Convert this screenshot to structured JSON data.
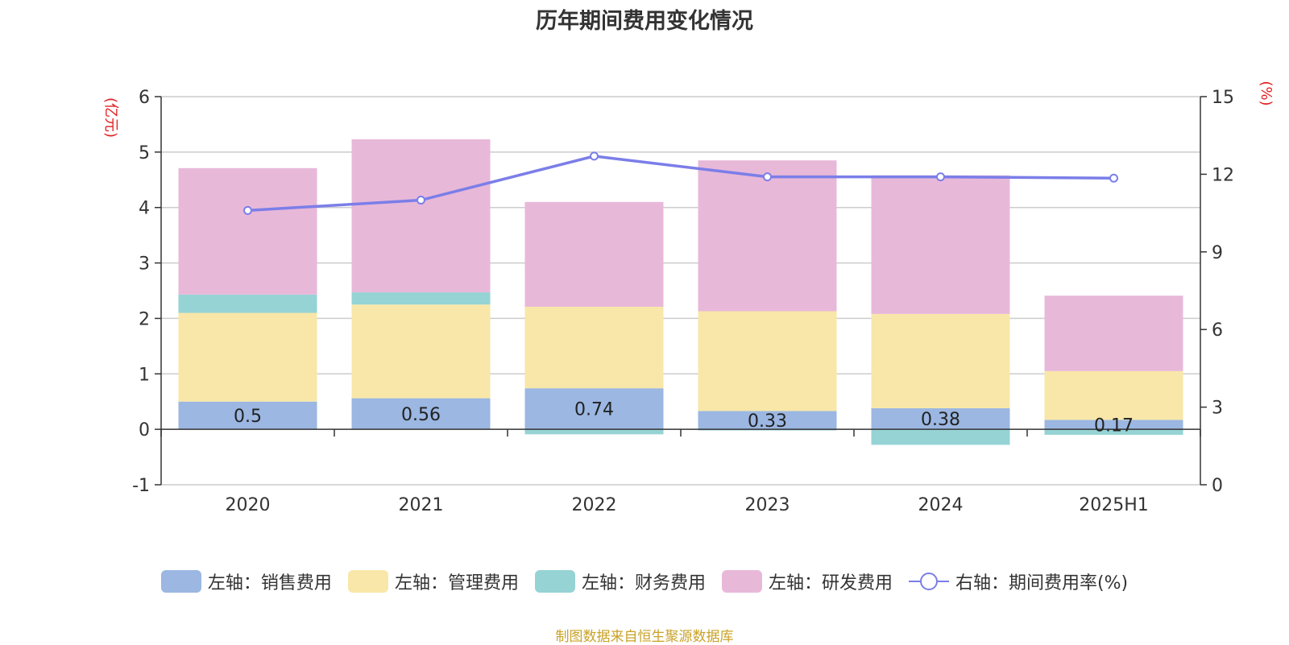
{
  "chart_data": {
    "type": "bar",
    "stacked": true,
    "title": "历年期间费用变化情况",
    "categories": [
      "2020",
      "2021",
      "2022",
      "2023",
      "2024",
      "2025H1"
    ],
    "left_axis": {
      "unit": "(亿元)",
      "ylim": [
        -1,
        6
      ],
      "ticks": [
        "-1",
        "0",
        "1",
        "2",
        "3",
        "4",
        "5",
        "6"
      ]
    },
    "right_axis": {
      "unit": "(%)",
      "ylim": [
        0,
        15
      ],
      "ticks": [
        "0",
        "3",
        "6",
        "9",
        "12",
        "15"
      ]
    },
    "grid": true,
    "legend_position": "bottom",
    "series": [
      {
        "name": "左轴：销售费用",
        "axis": "left",
        "color": "#9bb7e2",
        "values": [
          0.5,
          0.56,
          0.74,
          0.33,
          0.38,
          0.17
        ],
        "labels": [
          "0.5",
          "0.56",
          "0.74",
          "0.33",
          "0.38",
          "0.17"
        ]
      },
      {
        "name": "左轴：管理费用",
        "axis": "left",
        "color": "#f8e7a8",
        "values": [
          1.6,
          1.69,
          1.47,
          1.8,
          1.7,
          0.88
        ]
      },
      {
        "name": "左轴：财务费用",
        "axis": "left",
        "color": "#96d3d5",
        "values": [
          0.33,
          0.22,
          -0.09,
          -0.02,
          -0.28,
          -0.1
        ]
      },
      {
        "name": "左轴：研发费用",
        "axis": "left",
        "color": "#e8b8d9",
        "values": [
          2.28,
          2.76,
          1.89,
          2.72,
          2.5,
          1.36
        ]
      },
      {
        "name": "右轴：期间费用率(%)",
        "axis": "right",
        "type": "line",
        "color": "#7b7ee8",
        "values": [
          10.6,
          11.0,
          12.7,
          11.9,
          11.9,
          11.85
        ]
      }
    ]
  },
  "footer": {
    "source": "制图数据来自恒生聚源数据库"
  }
}
